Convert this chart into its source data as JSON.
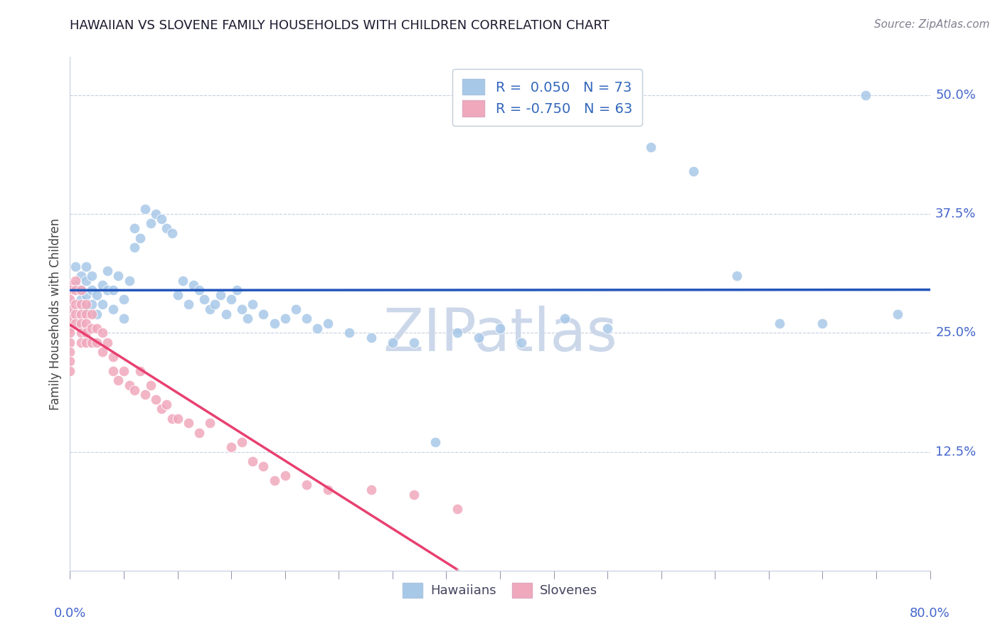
{
  "title": "HAWAIIAN VS SLOVENE FAMILY HOUSEHOLDS WITH CHILDREN CORRELATION CHART",
  "source": "Source: ZipAtlas.com",
  "ylabel": "Family Households with Children",
  "ytick_vals": [
    0.125,
    0.25,
    0.375,
    0.5
  ],
  "ytick_labels": [
    "12.5%",
    "25.0%",
    "37.5%",
    "50.0%"
  ],
  "xmin": 0.0,
  "xmax": 0.8,
  "ymin": 0.0,
  "ymax": 0.54,
  "hawaiian_R": 0.05,
  "hawaiian_N": 73,
  "slovene_R": -0.75,
  "slovene_N": 63,
  "blue_color": "#a8c8e8",
  "pink_color": "#f0a8bc",
  "line_blue": "#2255bb",
  "line_pink": "#e84070",
  "line_pink_dash": "#ddb8c4",
  "watermark": "ZIPatlas",
  "watermark_color": "#ccd8ea",
  "hawaiians_x": [
    0.005,
    0.005,
    0.01,
    0.01,
    0.01,
    0.015,
    0.015,
    0.015,
    0.015,
    0.02,
    0.02,
    0.02,
    0.025,
    0.025,
    0.03,
    0.03,
    0.035,
    0.035,
    0.04,
    0.04,
    0.045,
    0.05,
    0.05,
    0.055,
    0.06,
    0.06,
    0.065,
    0.07,
    0.075,
    0.08,
    0.085,
    0.09,
    0.095,
    0.1,
    0.105,
    0.11,
    0.115,
    0.12,
    0.125,
    0.13,
    0.135,
    0.14,
    0.145,
    0.15,
    0.155,
    0.16,
    0.165,
    0.17,
    0.18,
    0.19,
    0.2,
    0.21,
    0.22,
    0.23,
    0.24,
    0.26,
    0.28,
    0.3,
    0.32,
    0.34,
    0.36,
    0.38,
    0.4,
    0.42,
    0.46,
    0.5,
    0.54,
    0.58,
    0.62,
    0.66,
    0.7,
    0.74,
    0.77
  ],
  "hawaiians_y": [
    0.3,
    0.32,
    0.285,
    0.295,
    0.31,
    0.275,
    0.29,
    0.305,
    0.32,
    0.28,
    0.295,
    0.31,
    0.27,
    0.29,
    0.28,
    0.3,
    0.295,
    0.315,
    0.275,
    0.295,
    0.31,
    0.265,
    0.285,
    0.305,
    0.34,
    0.36,
    0.35,
    0.38,
    0.365,
    0.375,
    0.37,
    0.36,
    0.355,
    0.29,
    0.305,
    0.28,
    0.3,
    0.295,
    0.285,
    0.275,
    0.28,
    0.29,
    0.27,
    0.285,
    0.295,
    0.275,
    0.265,
    0.28,
    0.27,
    0.26,
    0.265,
    0.275,
    0.265,
    0.255,
    0.26,
    0.25,
    0.245,
    0.24,
    0.24,
    0.135,
    0.25,
    0.245,
    0.255,
    0.24,
    0.265,
    0.255,
    0.445,
    0.42,
    0.31,
    0.26,
    0.26,
    0.5,
    0.27
  ],
  "slovenes_x": [
    0.0,
    0.0,
    0.0,
    0.0,
    0.0,
    0.0,
    0.0,
    0.0,
    0.0,
    0.0,
    0.0,
    0.005,
    0.005,
    0.005,
    0.005,
    0.005,
    0.01,
    0.01,
    0.01,
    0.01,
    0.01,
    0.01,
    0.015,
    0.015,
    0.015,
    0.015,
    0.015,
    0.02,
    0.02,
    0.02,
    0.025,
    0.025,
    0.03,
    0.03,
    0.035,
    0.04,
    0.04,
    0.045,
    0.05,
    0.055,
    0.06,
    0.065,
    0.07,
    0.075,
    0.08,
    0.085,
    0.09,
    0.095,
    0.1,
    0.11,
    0.12,
    0.13,
    0.15,
    0.16,
    0.17,
    0.18,
    0.19,
    0.2,
    0.22,
    0.24,
    0.28,
    0.32,
    0.36
  ],
  "slovenes_y": [
    0.3,
    0.295,
    0.285,
    0.275,
    0.265,
    0.255,
    0.25,
    0.24,
    0.23,
    0.22,
    0.21,
    0.305,
    0.295,
    0.28,
    0.27,
    0.26,
    0.295,
    0.28,
    0.27,
    0.26,
    0.25,
    0.24,
    0.28,
    0.27,
    0.26,
    0.25,
    0.24,
    0.27,
    0.255,
    0.24,
    0.255,
    0.24,
    0.25,
    0.23,
    0.24,
    0.225,
    0.21,
    0.2,
    0.21,
    0.195,
    0.19,
    0.21,
    0.185,
    0.195,
    0.18,
    0.17,
    0.175,
    0.16,
    0.16,
    0.155,
    0.145,
    0.155,
    0.13,
    0.135,
    0.115,
    0.11,
    0.095,
    0.1,
    0.09,
    0.085,
    0.085,
    0.08,
    0.065
  ]
}
